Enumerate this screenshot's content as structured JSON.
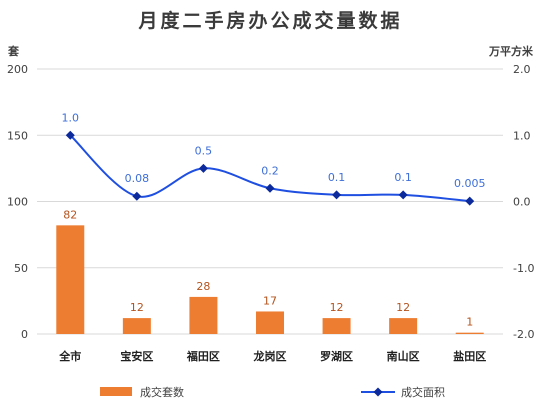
{
  "title": "月度二手房办公成交量数据",
  "left_unit": "套",
  "right_unit": "万平方米",
  "colors": {
    "bar": "#ed7d31",
    "line": "#1f4fe0",
    "bar_label": "#b4531e",
    "line_label": "#3e6fd8",
    "grid": "#d9d9d9"
  },
  "chart_data": {
    "type": "bar",
    "categories": [
      "全市",
      "宝安区",
      "福田区",
      "龙岗区",
      "罗湖区",
      "南山区",
      "盐田区"
    ],
    "series": [
      {
        "name": "成交套数",
        "type": "bar",
        "axis": "left",
        "values": [
          82,
          12,
          28,
          17,
          12,
          12,
          1
        ],
        "labels": [
          "82",
          "12",
          "28",
          "17",
          "12",
          "12",
          "1"
        ]
      },
      {
        "name": "成交面积",
        "type": "line",
        "axis": "right",
        "values": [
          1.0,
          0.08,
          0.5,
          0.2,
          0.1,
          0.1,
          0.005
        ],
        "labels": [
          "1.0",
          "0.08",
          "0.5",
          "0.2",
          "0.1",
          "0.1",
          "0.005"
        ]
      }
    ],
    "y_left": {
      "ylim": [
        0,
        200
      ],
      "ticks": [
        "0",
        "50",
        "100",
        "150",
        "200"
      ]
    },
    "y_right": {
      "ylim": [
        -2.0,
        2.0
      ],
      "ticks": [
        "-2.0",
        "-1.0",
        "0.0",
        "1.0",
        "2.0"
      ]
    },
    "grid": true,
    "legend_position": "bottom"
  }
}
